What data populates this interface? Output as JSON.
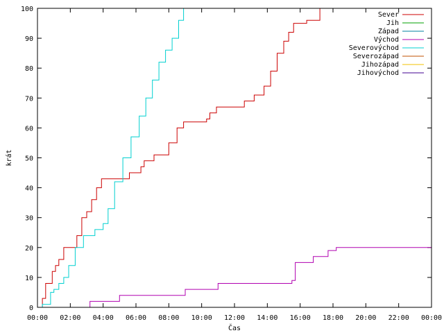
{
  "chart_data": {
    "type": "line",
    "title": "",
    "xlabel": "Čas",
    "ylabel": "krát",
    "x_unit": "hours",
    "xlim": [
      0,
      24
    ],
    "ylim": [
      0,
      100
    ],
    "grid": false,
    "legend_placement": "top-right",
    "x_ticks": [
      {
        "value": 0,
        "label": "00:00"
      },
      {
        "value": 2,
        "label": "02:00"
      },
      {
        "value": 4,
        "label": "04:00"
      },
      {
        "value": 6,
        "label": "06:00"
      },
      {
        "value": 8,
        "label": "08:00"
      },
      {
        "value": 10,
        "label": "10:00"
      },
      {
        "value": 12,
        "label": "12:00"
      },
      {
        "value": 14,
        "label": "14:00"
      },
      {
        "value": 16,
        "label": "16:00"
      },
      {
        "value": 18,
        "label": "18:00"
      },
      {
        "value": 20,
        "label": "20:00"
      },
      {
        "value": 22,
        "label": "22:00"
      },
      {
        "value": 24,
        "label": "00:00"
      }
    ],
    "y_ticks": [
      0,
      10,
      20,
      30,
      40,
      50,
      60,
      70,
      80,
      90,
      100
    ],
    "series": [
      {
        "name": "Sever",
        "color": "#cc0000",
        "x": [
          0,
          0.3,
          0.5,
          0.7,
          0.9,
          1.1,
          1.3,
          1.6,
          1.8,
          2.1,
          2.4,
          2.7,
          3.0,
          3.3,
          3.6,
          3.9,
          4.2,
          4.6,
          5.0,
          5.5,
          5.6,
          6.3,
          6.5,
          7.1,
          7.6,
          8.0,
          8.5,
          8.9,
          9.2,
          10.3,
          10.5,
          10.9,
          12.0,
          12.6,
          13.2,
          13.8,
          14.2,
          14.6,
          15.0,
          15.3,
          15.6,
          16.4,
          16.8,
          17.2,
          24
        ],
        "y": [
          0,
          3,
          8,
          8,
          12,
          14,
          16,
          20,
          20,
          20,
          24,
          30,
          32,
          36,
          40,
          43,
          43,
          43,
          43,
          43,
          45,
          47,
          49,
          51,
          51,
          55,
          60,
          62,
          62,
          63,
          65,
          67,
          67,
          69,
          71,
          74,
          79,
          85,
          89,
          92,
          95,
          96,
          96,
          100,
          100
        ]
      },
      {
        "name": "Jih",
        "color": "#00a000",
        "x": [],
        "y": []
      },
      {
        "name": "Západ",
        "color": "#0080a0",
        "x": [],
        "y": []
      },
      {
        "name": "Východ",
        "color": "#b000b0",
        "x": [
          0,
          3.2,
          4.7,
          5.0,
          9.0,
          10.5,
          11.0,
          13.7,
          15.5,
          15.7,
          16.8,
          17.7,
          18.2,
          24
        ],
        "y": [
          0,
          2,
          2,
          4,
          6,
          6,
          8,
          8,
          9,
          15,
          17,
          19,
          20,
          20
        ]
      },
      {
        "name": "Severovýchod",
        "color": "#00d0d0",
        "x": [
          0,
          0.3,
          0.6,
          0.8,
          1.0,
          1.3,
          1.6,
          1.9,
          2.3,
          2.8,
          3.5,
          4.0,
          4.3,
          4.7,
          5.2,
          5.7,
          6.2,
          6.6,
          7.0,
          7.4,
          7.8,
          8.2,
          8.6,
          8.9,
          9.0,
          24
        ],
        "y": [
          0,
          1,
          1,
          5,
          6,
          8,
          10,
          14,
          20,
          24,
          26,
          28,
          33,
          42,
          50,
          57,
          64,
          70,
          76,
          82,
          86,
          90,
          96,
          100,
          100,
          100
        ]
      },
      {
        "name": "Severozápad",
        "color": "#c05000",
        "x": [],
        "y": []
      },
      {
        "name": "Jihozápad",
        "color": "#f0c000",
        "x": [],
        "y": []
      },
      {
        "name": "Jihovýchod",
        "color": "#400090",
        "x": [],
        "y": []
      }
    ]
  }
}
